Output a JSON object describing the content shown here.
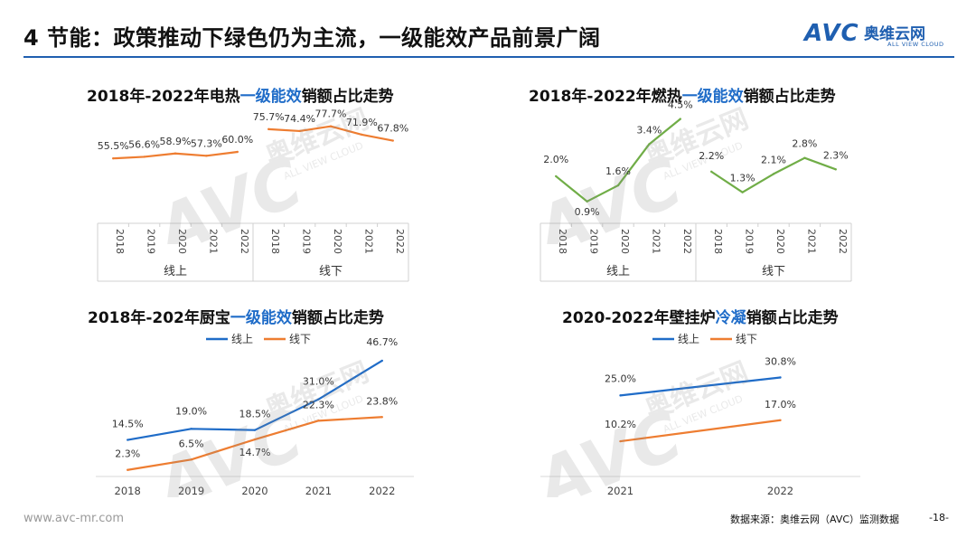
{
  "header": {
    "title": "4 节能：政策推动下绿色仍为主流，一级能效产品前景广阔",
    "logo_mark": "AVC",
    "logo_cn": "奥维云网",
    "logo_en": "ALL VIEW CLOUD"
  },
  "watermark": {
    "mark": "AVC",
    "cn": "奥维云网",
    "en": "ALL VIEW CLOUD"
  },
  "colors": {
    "online": "#1f6cc8",
    "offline": "#ee7d31",
    "green": "#70ad47",
    "accent": "#1f5fb0"
  },
  "footer": {
    "url": "www.avc-mr.com",
    "source": "数据来源：奥维云网（AVC）监测数据",
    "page": "-18-"
  },
  "chart_data": [
    {
      "id": "electric",
      "type": "line",
      "title_pre": "2018年-2022年电热",
      "title_hl": "一级能效",
      "title_post": "销额占比走势",
      "groups": [
        {
          "name": "线上",
          "categories": [
            "2018",
            "2019",
            "2020",
            "2021",
            "2022"
          ],
          "values": [
            55.5,
            56.6,
            58.9,
            57.3,
            60.0
          ],
          "labels": [
            "55.5%",
            "56.6%",
            "58.9%",
            "57.3%",
            "60.0%"
          ]
        },
        {
          "name": "线下",
          "categories": [
            "2018",
            "2019",
            "2020",
            "2021",
            "2022"
          ],
          "values": [
            75.7,
            74.4,
            77.7,
            71.9,
            67.8
          ],
          "labels": [
            "75.7%",
            "74.4%",
            "77.7%",
            "71.9%",
            "67.8%"
          ]
        }
      ],
      "ylim": [
        40,
        90
      ]
    },
    {
      "id": "gas",
      "type": "line",
      "title_pre": "2018年-2022年燃热",
      "title_hl": "一级能效",
      "title_post": "销额占比走势",
      "groups": [
        {
          "name": "线上",
          "categories": [
            "2018",
            "2019",
            "2020",
            "2021",
            "2022"
          ],
          "values": [
            2.0,
            0.9,
            1.6,
            3.4,
            4.5
          ],
          "labels": [
            "2.0%",
            "0.9%",
            "1.6%",
            "3.4%",
            "4.5%"
          ]
        },
        {
          "name": "线下",
          "categories": [
            "2018",
            "2019",
            "2020",
            "2021",
            "2022"
          ],
          "values": [
            2.2,
            1.3,
            2.1,
            2.8,
            2.3
          ],
          "labels": [
            "2.2%",
            "1.3%",
            "2.1%",
            "2.8%",
            "2.3%"
          ]
        }
      ],
      "ylim": [
        0.3,
        4.8
      ]
    },
    {
      "id": "kitchen",
      "type": "line",
      "title_pre": "2018年-202年厨宝",
      "title_hl": "一级能效",
      "title_post": "销额占比走势",
      "legend": [
        "线上",
        "线下"
      ],
      "categories": [
        "2018",
        "2019",
        "2020",
        "2021",
        "2022"
      ],
      "series": [
        {
          "name": "线上",
          "values": [
            14.5,
            19.0,
            18.5,
            31.0,
            46.7
          ],
          "labels": [
            "14.5%",
            "19.0%",
            "18.5%",
            "31.0%",
            "46.7%"
          ]
        },
        {
          "name": "线下",
          "values": [
            2.3,
            6.5,
            14.7,
            22.3,
            23.8
          ],
          "labels": [
            "2.3%",
            "6.5%",
            "14.7%",
            "22.3%",
            "23.8%"
          ]
        }
      ],
      "ylim": [
        0,
        50
      ]
    },
    {
      "id": "wallboiler",
      "type": "line",
      "title_pre": "2020-2022年壁挂炉",
      "title_hl": "冷凝",
      "title_post": "销额占比走势",
      "legend": [
        "线上",
        "线下"
      ],
      "categories": [
        "2021",
        "2022"
      ],
      "series": [
        {
          "name": "线上",
          "values": [
            25.0,
            30.8
          ],
          "labels": [
            "25.0%",
            "30.8%"
          ]
        },
        {
          "name": "线下",
          "values": [
            10.2,
            17.0
          ],
          "labels": [
            "10.2%",
            "17.0%"
          ]
        }
      ],
      "ylim": [
        0,
        40
      ]
    }
  ]
}
